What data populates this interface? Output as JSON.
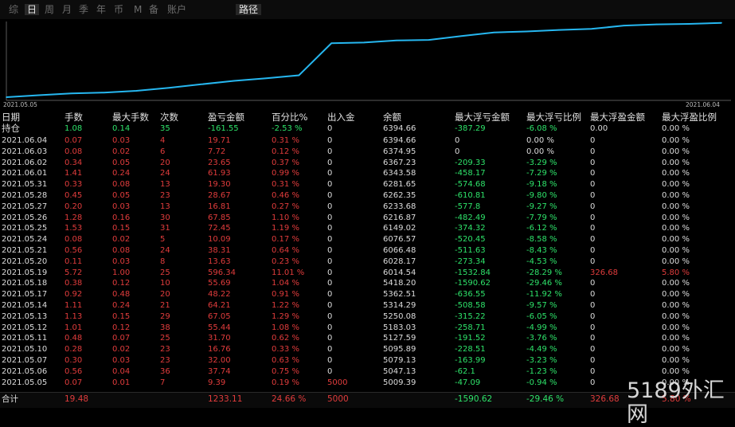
{
  "tabs": [
    "综",
    "日",
    "周",
    "月",
    "季",
    "年",
    "币",
    "M",
    "备",
    "账户"
  ],
  "active_tab": "日",
  "path_tab": "路径",
  "chart": {
    "start_label": "2021.05.05",
    "end_label": "2021.06.04",
    "line_color": "#26b7f0",
    "balance": [
      5009.39,
      5047.13,
      5079.13,
      5095.89,
      5127.59,
      5183.03,
      5250.08,
      5314.29,
      5362.51,
      5418.2,
      6014.54,
      6028.17,
      6066.48,
      6076.57,
      6149.02,
      6216.87,
      6233.68,
      6262.35,
      6281.65,
      6343.58,
      6367.23,
      6374.95,
      6394.66
    ]
  },
  "columns": [
    "日期",
    "手数",
    "最大手数",
    "次数",
    "盈亏金额",
    "百分比%",
    "出入金",
    "余额",
    "最大浮亏金额",
    "最大浮亏比例",
    "最大浮盈金额",
    "最大浮盈比例"
  ],
  "holding": {
    "label": "持仓",
    "lots": "1.08",
    "max_lots": "0.14",
    "count": "35",
    "pnl": "-161.55",
    "pct": "-2.53 %",
    "io": "0",
    "balance": "6394.66",
    "max_float_loss": "-387.29",
    "max_float_loss_pct": "-6.08 %",
    "max_float_profit": "0.00",
    "max_float_profit_pct": "0.00 %"
  },
  "rows": [
    {
      "date": "2021.06.04",
      "lots": "0.07",
      "max_lots": "0.03",
      "count": "4",
      "pnl": "19.71",
      "pct": "0.31 %",
      "io": "0",
      "balance": "6394.66",
      "mfl": "0",
      "mflp": "0.00 %",
      "mfp": "0",
      "mfpp": "0.00 %"
    },
    {
      "date": "2021.06.03",
      "lots": "0.08",
      "max_lots": "0.02",
      "count": "6",
      "pnl": "7.72",
      "pct": "0.12 %",
      "io": "0",
      "balance": "6374.95",
      "mfl": "0",
      "mflp": "0.00 %",
      "mfp": "0",
      "mfpp": "0.00 %"
    },
    {
      "date": "2021.06.02",
      "lots": "0.34",
      "max_lots": "0.05",
      "count": "20",
      "pnl": "23.65",
      "pct": "0.37 %",
      "io": "0",
      "balance": "6367.23",
      "mfl": "-209.33",
      "mflp": "-3.29 %",
      "mfp": "0",
      "mfpp": "0.00 %"
    },
    {
      "date": "2021.06.01",
      "lots": "1.41",
      "max_lots": "0.24",
      "count": "24",
      "pnl": "61.93",
      "pct": "0.99 %",
      "io": "0",
      "balance": "6343.58",
      "mfl": "-458.17",
      "mflp": "-7.29 %",
      "mfp": "0",
      "mfpp": "0.00 %"
    },
    {
      "date": "2021.05.31",
      "lots": "0.33",
      "max_lots": "0.08",
      "count": "13",
      "pnl": "19.30",
      "pct": "0.31 %",
      "io": "0",
      "balance": "6281.65",
      "mfl": "-574.68",
      "mflp": "-9.18 %",
      "mfp": "0",
      "mfpp": "0.00 %"
    },
    {
      "date": "2021.05.28",
      "lots": "0.45",
      "max_lots": "0.05",
      "count": "23",
      "pnl": "28.67",
      "pct": "0.46 %",
      "io": "0",
      "balance": "6262.35",
      "mfl": "-610.81",
      "mflp": "-9.80 %",
      "mfp": "0",
      "mfpp": "0.00 %"
    },
    {
      "date": "2021.05.27",
      "lots": "0.20",
      "max_lots": "0.03",
      "count": "13",
      "pnl": "16.81",
      "pct": "0.27 %",
      "io": "0",
      "balance": "6233.68",
      "mfl": "-577.8",
      "mflp": "-9.27 %",
      "mfp": "0",
      "mfpp": "0.00 %"
    },
    {
      "date": "2021.05.26",
      "lots": "1.28",
      "max_lots": "0.16",
      "count": "30",
      "pnl": "67.85",
      "pct": "1.10 %",
      "io": "0",
      "balance": "6216.87",
      "mfl": "-482.49",
      "mflp": "-7.79 %",
      "mfp": "0",
      "mfpp": "0.00 %"
    },
    {
      "date": "2021.05.25",
      "lots": "1.53",
      "max_lots": "0.15",
      "count": "31",
      "pnl": "72.45",
      "pct": "1.19 %",
      "io": "0",
      "balance": "6149.02",
      "mfl": "-374.32",
      "mflp": "-6.12 %",
      "mfp": "0",
      "mfpp": "0.00 %"
    },
    {
      "date": "2021.05.24",
      "lots": "0.08",
      "max_lots": "0.02",
      "count": "5",
      "pnl": "10.09",
      "pct": "0.17 %",
      "io": "0",
      "balance": "6076.57",
      "mfl": "-520.45",
      "mflp": "-8.58 %",
      "mfp": "0",
      "mfpp": "0.00 %"
    },
    {
      "date": "2021.05.21",
      "lots": "0.56",
      "max_lots": "0.08",
      "count": "24",
      "pnl": "38.31",
      "pct": "0.64 %",
      "io": "0",
      "balance": "6066.48",
      "mfl": "-511.63",
      "mflp": "-8.43 %",
      "mfp": "0",
      "mfpp": "0.00 %"
    },
    {
      "date": "2021.05.20",
      "lots": "0.11",
      "max_lots": "0.03",
      "count": "8",
      "pnl": "13.63",
      "pct": "0.23 %",
      "io": "0",
      "balance": "6028.17",
      "mfl": "-273.34",
      "mflp": "-4.53 %",
      "mfp": "0",
      "mfpp": "0.00 %"
    },
    {
      "date": "2021.05.19",
      "lots": "5.72",
      "max_lots": "1.00",
      "count": "25",
      "pnl": "596.34",
      "pct": "11.01 %",
      "io": "0",
      "balance": "6014.54",
      "mfl": "-1532.84",
      "mflp": "-28.29 %",
      "mfp": "326.68",
      "mfpp": "5.80 %"
    },
    {
      "date": "2021.05.18",
      "lots": "0.38",
      "max_lots": "0.12",
      "count": "10",
      "pnl": "55.69",
      "pct": "1.04 %",
      "io": "0",
      "balance": "5418.20",
      "mfl": "-1590.62",
      "mflp": "-29.46 %",
      "mfp": "0",
      "mfpp": "0.00 %"
    },
    {
      "date": "2021.05.17",
      "lots": "0.92",
      "max_lots": "0.48",
      "count": "20",
      "pnl": "48.22",
      "pct": "0.91 %",
      "io": "0",
      "balance": "5362.51",
      "mfl": "-636.55",
      "mflp": "-11.92 %",
      "mfp": "0",
      "mfpp": "0.00 %"
    },
    {
      "date": "2021.05.14",
      "lots": "1.11",
      "max_lots": "0.24",
      "count": "21",
      "pnl": "64.21",
      "pct": "1.22 %",
      "io": "0",
      "balance": "5314.29",
      "mfl": "-508.58",
      "mflp": "-9.57 %",
      "mfp": "0",
      "mfpp": "0.00 %"
    },
    {
      "date": "2021.05.13",
      "lots": "1.13",
      "max_lots": "0.15",
      "count": "29",
      "pnl": "67.05",
      "pct": "1.29 %",
      "io": "0",
      "balance": "5250.08",
      "mfl": "-315.22",
      "mflp": "-6.05 %",
      "mfp": "0",
      "mfpp": "0.00 %"
    },
    {
      "date": "2021.05.12",
      "lots": "1.01",
      "max_lots": "0.12",
      "count": "38",
      "pnl": "55.44",
      "pct": "1.08 %",
      "io": "0",
      "balance": "5183.03",
      "mfl": "-258.71",
      "mflp": "-4.99 %",
      "mfp": "0",
      "mfpp": "0.00 %"
    },
    {
      "date": "2021.05.11",
      "lots": "0.48",
      "max_lots": "0.07",
      "count": "25",
      "pnl": "31.70",
      "pct": "0.62 %",
      "io": "0",
      "balance": "5127.59",
      "mfl": "-191.52",
      "mflp": "-3.76 %",
      "mfp": "0",
      "mfpp": "0.00 %"
    },
    {
      "date": "2021.05.10",
      "lots": "0.28",
      "max_lots": "0.02",
      "count": "23",
      "pnl": "16.76",
      "pct": "0.33 %",
      "io": "0",
      "balance": "5095.89",
      "mfl": "-228.51",
      "mflp": "-4.49 %",
      "mfp": "0",
      "mfpp": "0.00 %"
    },
    {
      "date": "2021.05.07",
      "lots": "0.30",
      "max_lots": "0.03",
      "count": "23",
      "pnl": "32.00",
      "pct": "0.63 %",
      "io": "0",
      "balance": "5079.13",
      "mfl": "-163.99",
      "mflp": "-3.23 %",
      "mfp": "0",
      "mfpp": "0.00 %"
    },
    {
      "date": "2021.05.06",
      "lots": "0.56",
      "max_lots": "0.04",
      "count": "36",
      "pnl": "37.74",
      "pct": "0.75 %",
      "io": "0",
      "balance": "5047.13",
      "mfl": "-62.1",
      "mflp": "-1.23 %",
      "mfp": "0",
      "mfpp": "0.00 %"
    },
    {
      "date": "2021.05.05",
      "lots": "0.07",
      "max_lots": "0.01",
      "count": "7",
      "pnl": "9.39",
      "pct": "0.19 %",
      "io": "5000",
      "balance": "5009.39",
      "mfl": "-47.09",
      "mflp": "-0.94 %",
      "mfp": "0",
      "mfpp": "0.00 %"
    }
  ],
  "total": {
    "label": "合计",
    "lots": "19.48",
    "pnl": "1233.11",
    "pct": "24.66 %",
    "io": "5000",
    "mfl": "-1590.62",
    "mflp": "-29.46 %",
    "mfp": "326.68",
    "mfpp": "5.80 %"
  },
  "watermark": "5189外汇网",
  "colors": {
    "positive": "#e13c3c",
    "negative": "#2ee36a",
    "neutral": "#dcdcdc",
    "background": "#000000"
  }
}
